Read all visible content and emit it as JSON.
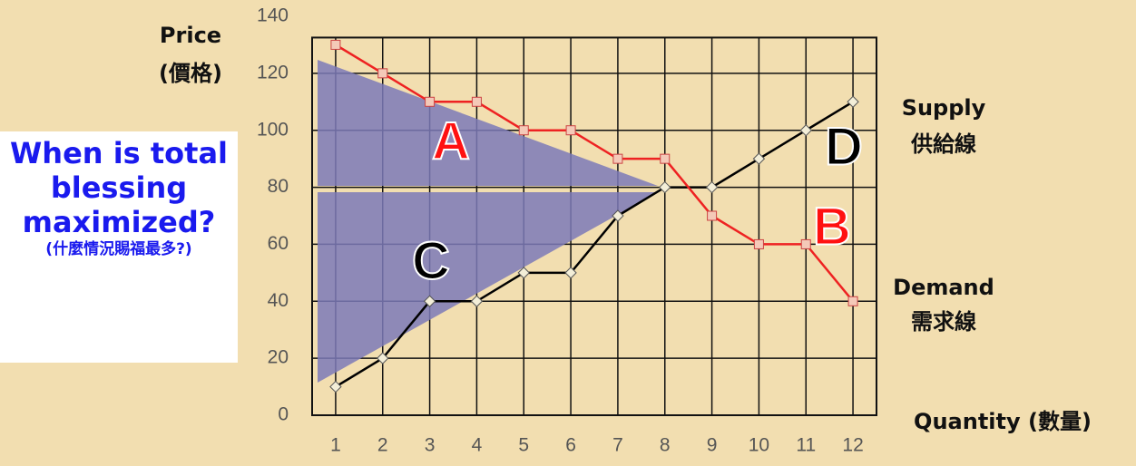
{
  "chart_data": {
    "type": "line",
    "y_label_lines": [
      "Price",
      "(價格)"
    ],
    "x_label": "Quantity (數量)",
    "x": [
      1,
      2,
      3,
      4,
      5,
      6,
      7,
      8,
      9,
      10,
      11,
      12
    ],
    "xlim": [
      0.5,
      12.5
    ],
    "xticks": [
      1,
      2,
      3,
      4,
      5,
      6,
      7,
      8,
      9,
      10,
      11,
      12
    ],
    "ylim": [
      0,
      140
    ],
    "yticks": [
      0,
      20,
      40,
      60,
      80,
      100,
      120,
      140
    ],
    "grid": true,
    "series": [
      {
        "name": "Supply",
        "name_zh": "供給線",
        "color": "#000000",
        "marker_color": "#f3eed8",
        "values": [
          10,
          20,
          40,
          40,
          50,
          50,
          70,
          80,
          80,
          90,
          100,
          110
        ]
      },
      {
        "name": "Demand",
        "name_zh": "需求線",
        "color": "#ee2222",
        "marker_color": "#f4c9b8",
        "values": [
          130,
          120,
          110,
          110,
          100,
          100,
          90,
          90,
          70,
          60,
          60,
          40
        ]
      }
    ],
    "region_labels": [
      "A",
      "B",
      "C",
      "D"
    ],
    "question": "When is total blessing maximized?",
    "question_zh": "(什麼情況賜福最多?)"
  }
}
